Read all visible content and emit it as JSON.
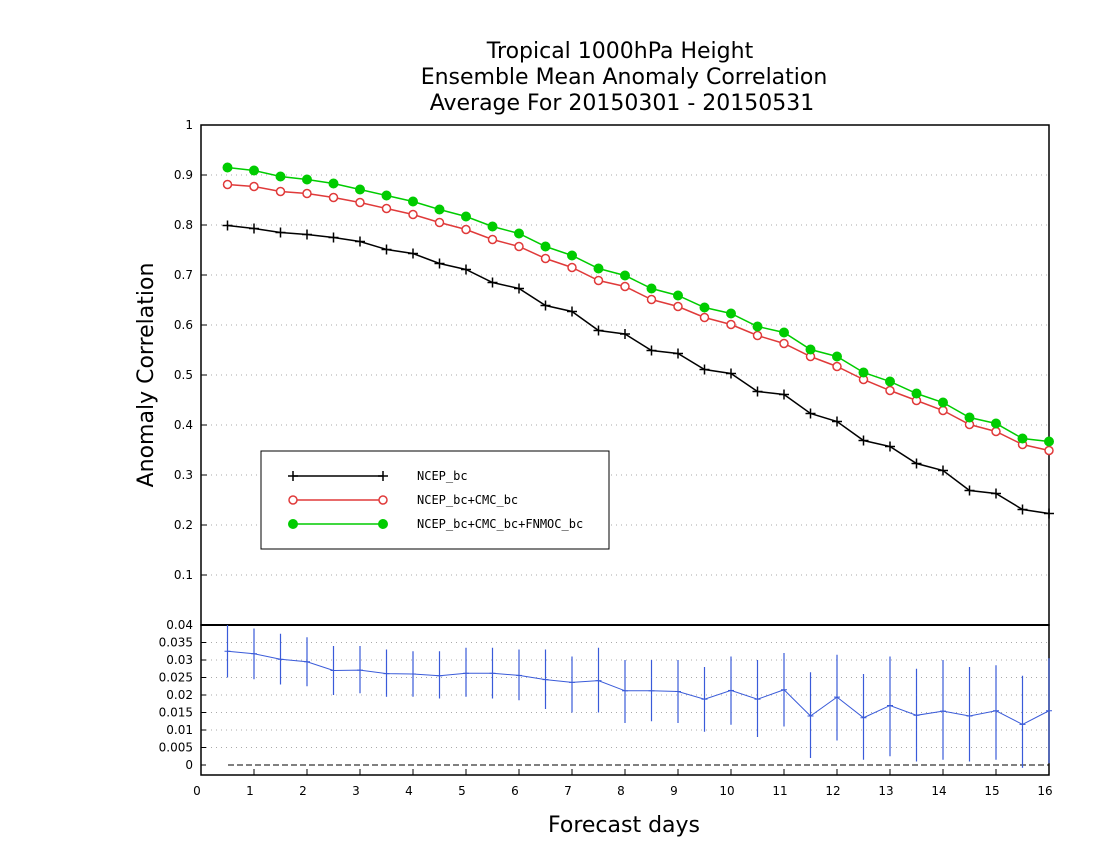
{
  "chart_data": {
    "type": "line",
    "title": [
      "Tropical 1000hPa Height",
      "Ensemble Mean Anomaly Correlation",
      "Average For 20150301 - 20150531"
    ],
    "xlabel": "Forecast days",
    "ylabel": "Anomaly Correlation",
    "xlim": [
      0,
      16
    ],
    "xticks": [
      "0",
      "1",
      "2",
      "3",
      "4",
      "5",
      "6",
      "7",
      "8",
      "9",
      "10",
      "11",
      "12",
      "13",
      "14",
      "15",
      "16"
    ],
    "grid": true,
    "legend_position": "lower-left",
    "top_panel": {
      "ylim": [
        0,
        1
      ],
      "yticks": [
        "0.1",
        "0.2",
        "0.3",
        "0.4",
        "0.5",
        "0.6",
        "0.7",
        "0.8",
        "0.9",
        "1"
      ],
      "x": [
        0.5,
        1,
        1.5,
        2,
        2.5,
        3,
        3.5,
        4,
        4.5,
        5,
        5.5,
        6,
        6.5,
        7,
        7.5,
        8,
        8.5,
        9,
        9.5,
        10,
        10.5,
        11,
        11.5,
        12,
        12.5,
        13,
        13.5,
        14,
        14.5,
        15,
        15.5,
        16
      ],
      "series": [
        {
          "name": "NCEP_bc",
          "color": "#000000",
          "marker": "plus",
          "values": [
            0.799,
            0.793,
            0.785,
            0.781,
            0.775,
            0.767,
            0.751,
            0.743,
            0.723,
            0.711,
            0.685,
            0.673,
            0.639,
            0.627,
            0.589,
            0.582,
            0.549,
            0.543,
            0.511,
            0.503,
            0.467,
            0.461,
            0.423,
            0.407,
            0.369,
            0.357,
            0.323,
            0.309,
            0.269,
            0.263,
            0.231,
            0.223
          ]
        },
        {
          "name": "NCEP_bc+CMC_bc",
          "color": "#e03a3a",
          "marker": "open-circle",
          "values": [
            0.881,
            0.877,
            0.867,
            0.863,
            0.855,
            0.845,
            0.833,
            0.821,
            0.805,
            0.791,
            0.771,
            0.757,
            0.733,
            0.715,
            0.689,
            0.677,
            0.651,
            0.637,
            0.615,
            0.601,
            0.579,
            0.563,
            0.537,
            0.517,
            0.491,
            0.469,
            0.449,
            0.429,
            0.401,
            0.387,
            0.361,
            0.349
          ]
        },
        {
          "name": "NCEP_bc+CMC_bc+FNMOC_bc",
          "color": "#00cc00",
          "marker": "filled-circle",
          "values": [
            0.915,
            0.909,
            0.897,
            0.891,
            0.883,
            0.871,
            0.859,
            0.847,
            0.831,
            0.817,
            0.797,
            0.783,
            0.757,
            0.739,
            0.713,
            0.699,
            0.673,
            0.659,
            0.635,
            0.623,
            0.597,
            0.585,
            0.551,
            0.537,
            0.505,
            0.487,
            0.463,
            0.445,
            0.415,
            0.403,
            0.373,
            0.367
          ]
        }
      ]
    },
    "bottom_panel": {
      "ylim": [
        0,
        0.04
      ],
      "yticks": [
        "0",
        "0.005",
        "0.01",
        "0.015",
        "0.02",
        "0.025",
        "0.03",
        "0.035",
        "0.04"
      ],
      "series": [
        {
          "color": "#3a5bd9",
          "marker": "plus",
          "x": [
            0.5,
            1,
            1.5,
            2,
            2.5,
            3,
            3.5,
            4,
            4.5,
            5,
            5.5,
            6,
            6.5,
            7,
            7.5,
            8,
            8.5,
            9,
            9.5,
            10,
            10.5,
            11,
            11.5,
            12,
            12.5,
            13,
            13.5,
            14,
            14.5,
            15,
            15.5,
            16
          ],
          "values": [
            0.0325,
            0.0318,
            0.0302,
            0.0295,
            0.027,
            0.0271,
            0.0261,
            0.026,
            0.0255,
            0.0262,
            0.0262,
            0.0256,
            0.0244,
            0.0236,
            0.0241,
            0.0212,
            0.0212,
            0.021,
            0.0188,
            0.0213,
            0.0188,
            0.0215,
            0.014,
            0.0194,
            0.0135,
            0.017,
            0.0142,
            0.0154,
            0.014,
            0.0155,
            0.0116,
            0.0155
          ],
          "err_low": [
            0.025,
            0.0245,
            0.023,
            0.0225,
            0.02,
            0.0205,
            0.0195,
            0.0195,
            0.019,
            0.0195,
            0.019,
            0.0185,
            0.016,
            0.015,
            0.015,
            0.012,
            0.0125,
            0.012,
            0.0095,
            0.0115,
            0.008,
            0.011,
            0.002,
            0.007,
            0.0015,
            0.0025,
            0.001,
            0.0015,
            0.001,
            0.0015,
            -0.002,
            0.0005
          ],
          "err_high": [
            0.04,
            0.039,
            0.0375,
            0.0365,
            0.034,
            0.034,
            0.033,
            0.0325,
            0.0325,
            0.0335,
            0.0335,
            0.033,
            0.033,
            0.031,
            0.0335,
            0.03,
            0.03,
            0.03,
            0.028,
            0.031,
            0.03,
            0.032,
            0.0265,
            0.0315,
            0.026,
            0.031,
            0.0275,
            0.03,
            0.028,
            0.0285,
            0.0255,
            0.0305
          ]
        }
      ]
    }
  }
}
